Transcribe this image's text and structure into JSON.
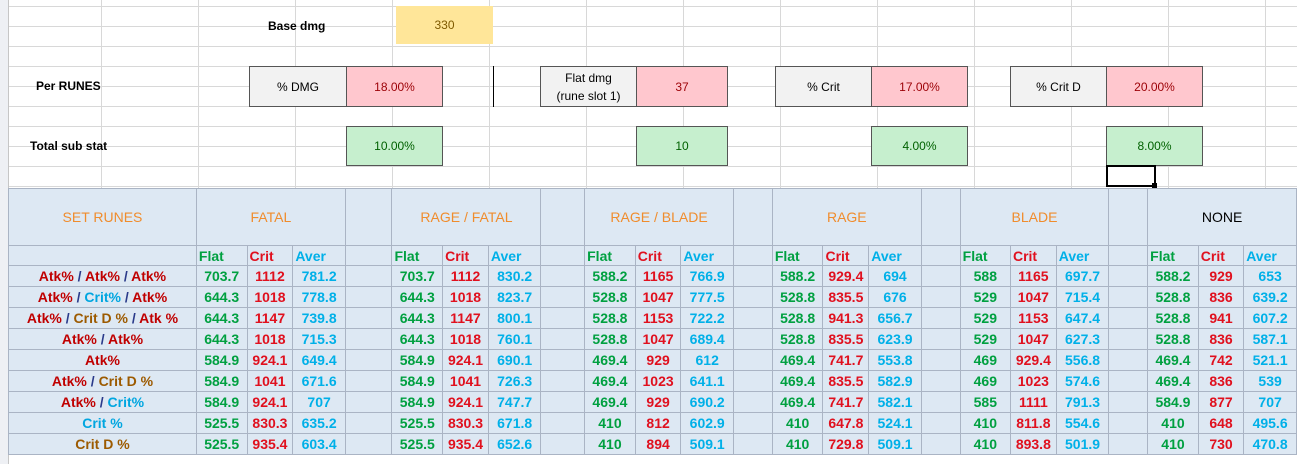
{
  "top": {
    "base_dmg_label": "Base dmg",
    "base_dmg_value": "330",
    "per_runes_label": "Per RUNES",
    "total_sub_label": "Total sub stat",
    "pct_dmg_label": "% DMG",
    "pct_dmg_value": "18.00%",
    "pct_dmg_sub": "10.00%",
    "flat_dmg_label_1": "Flat dmg",
    "flat_dmg_label_2": "(rune slot 1)",
    "flat_dmg_value": "37",
    "flat_dmg_sub": "10",
    "pct_crit_label": "% Crit",
    "pct_crit_value": "17.00%",
    "pct_crit_sub": "4.00%",
    "pct_critd_label": "% Crit D",
    "pct_critd_value": "20.00%",
    "pct_critd_sub": "8.00%"
  },
  "table": {
    "set_runes_label": "SET RUNES",
    "sets": [
      "FATAL",
      "RAGE / FATAL",
      "RAGE / BLADE",
      "RAGE",
      "BLADE",
      "NONE"
    ],
    "subheaders": [
      "Flat",
      "Crit",
      "Aver"
    ],
    "rows": [
      {
        "label": [
          [
            "Atk%",
            "atk"
          ],
          [
            " / ",
            "sep"
          ],
          [
            "Atk%",
            "atk"
          ],
          [
            " / ",
            "sep"
          ],
          [
            "Atk%",
            "atk"
          ]
        ],
        "vals": [
          [
            "703.7",
            "1112",
            "781.2"
          ],
          [
            "703.7",
            "1112",
            "830.2"
          ],
          [
            "588.2",
            "1165",
            "766.9"
          ],
          [
            "588.2",
            "929.4",
            "694"
          ],
          [
            "588",
            "1165",
            "697.7"
          ],
          [
            "588.2",
            "929",
            "653"
          ]
        ]
      },
      {
        "label": [
          [
            "Atk%",
            "atk"
          ],
          [
            " / ",
            "sep"
          ],
          [
            "Crit%",
            "crit"
          ],
          [
            " / ",
            "sep"
          ],
          [
            "Atk%",
            "atk"
          ]
        ],
        "vals": [
          [
            "644.3",
            "1018",
            "778.8"
          ],
          [
            "644.3",
            "1018",
            "823.7"
          ],
          [
            "528.8",
            "1047",
            "777.5"
          ],
          [
            "528.8",
            "835.5",
            "676"
          ],
          [
            "529",
            "1047",
            "715.4"
          ],
          [
            "528.8",
            "836",
            "639.2"
          ]
        ]
      },
      {
        "label": [
          [
            "Atk%",
            "atk"
          ],
          [
            " / ",
            "sep"
          ],
          [
            "Crit D %",
            "critd"
          ],
          [
            " / ",
            "sep"
          ],
          [
            "Atk %",
            "atk"
          ]
        ],
        "vals": [
          [
            "644.3",
            "1147",
            "739.8"
          ],
          [
            "644.3",
            "1147",
            "800.1"
          ],
          [
            "528.8",
            "1153",
            "722.2"
          ],
          [
            "528.8",
            "941.3",
            "656.7"
          ],
          [
            "529",
            "1153",
            "647.4"
          ],
          [
            "528.8",
            "941",
            "607.2"
          ]
        ]
      },
      {
        "label": [
          [
            "Atk%",
            "atk"
          ],
          [
            " / ",
            "sep"
          ],
          [
            "Atk%",
            "atk"
          ]
        ],
        "vals": [
          [
            "644.3",
            "1018",
            "715.3"
          ],
          [
            "644.3",
            "1018",
            "760.1"
          ],
          [
            "528.8",
            "1047",
            "689.4"
          ],
          [
            "528.8",
            "835.5",
            "623.9"
          ],
          [
            "529",
            "1047",
            "627.3"
          ],
          [
            "528.8",
            "836",
            "587.1"
          ]
        ]
      },
      {
        "label": [
          [
            "Atk%",
            "atk"
          ]
        ],
        "vals": [
          [
            "584.9",
            "924.1",
            "649.4"
          ],
          [
            "584.9",
            "924.1",
            "690.1"
          ],
          [
            "469.4",
            "929",
            "612"
          ],
          [
            "469.4",
            "741.7",
            "553.8"
          ],
          [
            "469",
            "929.4",
            "556.8"
          ],
          [
            "469.4",
            "742",
            "521.1"
          ]
        ]
      },
      {
        "label": [
          [
            "Atk%",
            "atk"
          ],
          [
            " / ",
            "sep"
          ],
          [
            "Crit D %",
            "critd"
          ]
        ],
        "vals": [
          [
            "584.9",
            "1041",
            "671.6"
          ],
          [
            "584.9",
            "1041",
            "726.3"
          ],
          [
            "469.4",
            "1023",
            "641.1"
          ],
          [
            "469.4",
            "835.5",
            "582.9"
          ],
          [
            "469",
            "1023",
            "574.6"
          ],
          [
            "469.4",
            "836",
            "539"
          ]
        ]
      },
      {
        "label": [
          [
            "Atk%",
            "atk"
          ],
          [
            " / ",
            "sep"
          ],
          [
            "Crit%",
            "crit"
          ]
        ],
        "vals": [
          [
            "584.9",
            "924.1",
            "707"
          ],
          [
            "584.9",
            "924.1",
            "747.7"
          ],
          [
            "469.4",
            "929",
            "690.2"
          ],
          [
            "469.4",
            "741.7",
            "582.1"
          ],
          [
            "585",
            "1111",
            "791.3"
          ],
          [
            "584.9",
            "877",
            "707"
          ]
        ]
      },
      {
        "label": [
          [
            "Crit %",
            "crit"
          ]
        ],
        "vals": [
          [
            "525.5",
            "830.3",
            "635.2"
          ],
          [
            "525.5",
            "830.3",
            "671.8"
          ],
          [
            "410",
            "812",
            "602.9"
          ],
          [
            "410",
            "647.8",
            "524.1"
          ],
          [
            "410",
            "811.8",
            "554.6"
          ],
          [
            "410",
            "648",
            "495.6"
          ]
        ]
      },
      {
        "label": [
          [
            "Crit D %",
            "critd"
          ]
        ],
        "vals": [
          [
            "525.5",
            "935.4",
            "603.4"
          ],
          [
            "525.5",
            "935.4",
            "652.6"
          ],
          [
            "410",
            "894",
            "509.1"
          ],
          [
            "410",
            "729.8",
            "509.1"
          ],
          [
            "410",
            "893.8",
            "501.9"
          ],
          [
            "410",
            "730",
            "470.8"
          ]
        ]
      }
    ]
  },
  "colors": {
    "header_orange": "#f08c2c",
    "flat_green": "#00a040",
    "crit_red": "#e0101e",
    "aver_blue": "#00b0e8",
    "table_bg": "#dde8f3"
  }
}
